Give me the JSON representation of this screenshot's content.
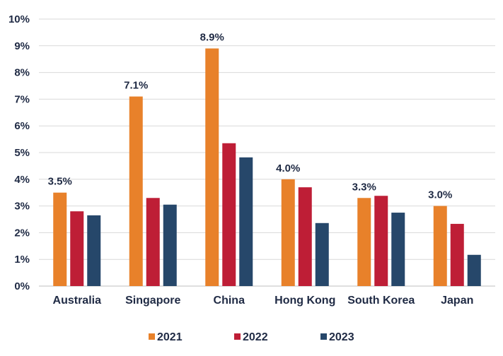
{
  "chart_data": {
    "type": "bar",
    "title": "",
    "xlabel": "",
    "ylabel": "",
    "categories": [
      "Australia",
      "Singapore",
      "China",
      "Hong Kong",
      "South Korea",
      "Japan"
    ],
    "series": [
      {
        "name": "2021",
        "color": "#e8812a",
        "values": [
          3.5,
          7.1,
          8.9,
          4.0,
          3.3,
          3.0
        ]
      },
      {
        "name": "2022",
        "color": "#be1e36",
        "values": [
          2.8,
          3.3,
          5.35,
          3.7,
          3.38,
          2.33
        ]
      },
      {
        "name": "2023",
        "color": "#26476a",
        "values": [
          2.65,
          3.05,
          4.82,
          2.36,
          2.75,
          1.17
        ]
      }
    ],
    "data_labels": [
      {
        "series": "2021",
        "category": "Australia",
        "text": "3.5%"
      },
      {
        "series": "2021",
        "category": "Singapore",
        "text": "7.1%"
      },
      {
        "series": "2021",
        "category": "China",
        "text": "8.9%"
      },
      {
        "series": "2021",
        "category": "Hong Kong",
        "text": "4.0%"
      },
      {
        "series": "2021",
        "category": "South Korea",
        "text": "3.3%"
      },
      {
        "series": "2021",
        "category": "Japan",
        "text": "3.0%"
      }
    ],
    "ylim": [
      0,
      10
    ],
    "yticks": [
      "0%",
      "1%",
      "2%",
      "3%",
      "4%",
      "5%",
      "6%",
      "7%",
      "8%",
      "9%",
      "10%"
    ],
    "grid": true,
    "legend_position": "bottom"
  }
}
